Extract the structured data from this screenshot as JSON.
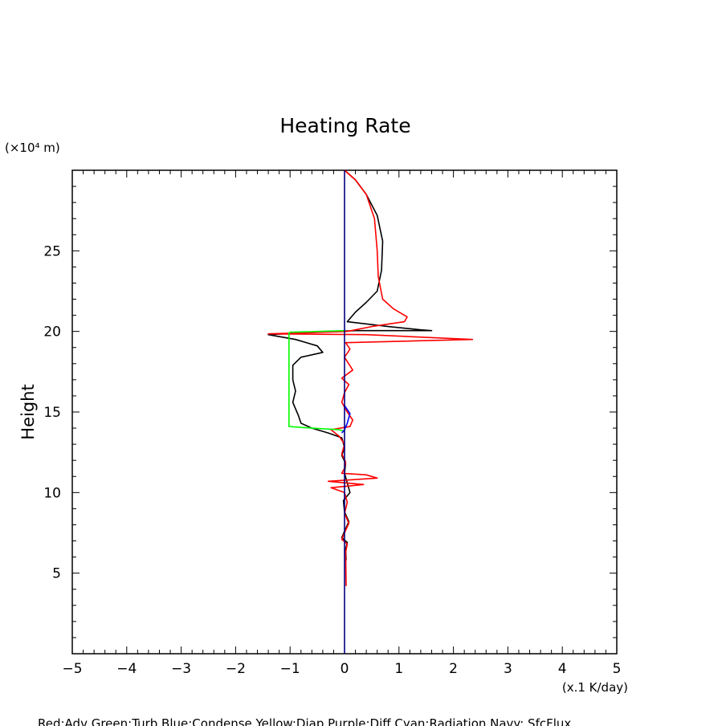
{
  "chart_data": {
    "type": "line",
    "title": "Heating Rate",
    "xlabel": "(x.1 K/day)",
    "ylabel": "Height",
    "y_unit_label": "(×10⁴ m)",
    "xlim": [
      -5,
      5
    ],
    "ylim": [
      0,
      30
    ],
    "x_ticks": [
      -5,
      -4,
      -3,
      -2,
      -1,
      0,
      1,
      2,
      3,
      4,
      5
    ],
    "x_tick_labels": [
      "−5",
      "−4",
      "−3",
      "−2",
      "−1",
      "0",
      "1",
      "2",
      "3",
      "4",
      "5"
    ],
    "y_ticks": [
      5,
      10,
      15,
      20,
      25
    ],
    "y_tick_labels": [
      "5",
      "10",
      "15",
      "20",
      "25"
    ],
    "grid": false,
    "footer": "Red:Adv Green:Turb Blue:Condense Yellow:Diap Purple:Diff Cyan:Radiation Navy: SfcFlux",
    "series": [
      {
        "color": "#000000",
        "points": [
          [
            0,
            30
          ],
          [
            0.2,
            29.4
          ],
          [
            0.4,
            28.5
          ],
          [
            0.6,
            27.2
          ],
          [
            0.7,
            25.6
          ],
          [
            0.68,
            23.8
          ],
          [
            0.6,
            22.5
          ],
          [
            0.4,
            21.8
          ],
          [
            0.2,
            21.2
          ],
          [
            0.05,
            20.6
          ],
          [
            0.8,
            20.3
          ],
          [
            1.4,
            20.1
          ],
          [
            1.6,
            20.05
          ],
          [
            0.2,
            20.05
          ],
          [
            -0.5,
            19.95
          ],
          [
            -1.4,
            19.8
          ],
          [
            -0.9,
            19.5
          ],
          [
            -0.5,
            19.1
          ],
          [
            -0.4,
            18.7
          ],
          [
            -0.8,
            18.4
          ],
          [
            -0.95,
            17.9
          ],
          [
            -0.95,
            17.0
          ],
          [
            -0.9,
            16.3
          ],
          [
            -0.95,
            15.6
          ],
          [
            -0.85,
            14.8
          ],
          [
            -0.8,
            14.3
          ],
          [
            -0.6,
            14.0
          ],
          [
            -0.3,
            13.7
          ],
          [
            -0.05,
            13.4
          ],
          [
            0,
            12.8
          ],
          [
            -0.05,
            12.3
          ],
          [
            0.02,
            11.8
          ],
          [
            0,
            11.2
          ],
          [
            0.05,
            10.6
          ],
          [
            0.1,
            10.0
          ],
          [
            -0.02,
            9.5
          ],
          [
            0.0,
            8.8
          ],
          [
            0.08,
            8.2
          ],
          [
            0.0,
            7.6
          ],
          [
            -0.05,
            7.2
          ],
          [
            0.05,
            6.9
          ],
          [
            0.02,
            6.5
          ],
          [
            0.03,
            5.8
          ]
        ]
      },
      {
        "color": "#ff0000",
        "points": [
          [
            0,
            30
          ],
          [
            0.2,
            29.4
          ],
          [
            0.4,
            28.5
          ],
          [
            0.55,
            27.0
          ],
          [
            0.6,
            25.0
          ],
          [
            0.62,
            23.4
          ],
          [
            0.7,
            22.0
          ],
          [
            0.9,
            21.4
          ],
          [
            1.15,
            20.9
          ],
          [
            1.1,
            20.6
          ],
          [
            0.5,
            20.3
          ],
          [
            0.05,
            20.0
          ],
          [
            -1.4,
            19.85
          ],
          [
            0.4,
            19.8
          ],
          [
            2.35,
            19.5
          ],
          [
            0.02,
            19.3
          ],
          [
            0.1,
            18.9
          ],
          [
            0.0,
            18.4
          ],
          [
            0.15,
            17.6
          ],
          [
            -0.05,
            17.1
          ],
          [
            0.08,
            16.7
          ],
          [
            0.0,
            16.2
          ],
          [
            -0.05,
            15.6
          ],
          [
            0.05,
            15.0
          ],
          [
            0.15,
            14.5
          ],
          [
            0.1,
            14.1
          ],
          [
            -0.25,
            13.9
          ],
          [
            -0.1,
            13.5
          ],
          [
            0.0,
            13.0
          ],
          [
            -0.05,
            12.4
          ],
          [
            0.02,
            11.9
          ],
          [
            0.0,
            11.5
          ],
          [
            -0.05,
            11.2
          ],
          [
            0.4,
            11.1
          ],
          [
            0.6,
            10.9
          ],
          [
            -0.3,
            10.7
          ],
          [
            0.35,
            10.5
          ],
          [
            -0.25,
            10.3
          ],
          [
            0.0,
            10.0
          ],
          [
            0.05,
            9.4
          ],
          [
            0.0,
            8.7
          ],
          [
            0.08,
            8.1
          ],
          [
            0.0,
            7.5
          ],
          [
            -0.05,
            7.1
          ],
          [
            0.05,
            6.8
          ],
          [
            0.02,
            6.3
          ],
          [
            0.03,
            4.2
          ]
        ]
      },
      {
        "color": "#00ff00",
        "points": [
          [
            0,
            20.05
          ],
          [
            -1.0,
            19.95
          ],
          [
            -1.02,
            19.9
          ],
          [
            -1.02,
            17.0
          ],
          [
            -1.02,
            14.1
          ],
          [
            -0.6,
            14.0
          ],
          [
            -0.1,
            13.9
          ],
          [
            0,
            13.8
          ]
        ]
      },
      {
        "color": "#0000ff",
        "points": [
          [
            0,
            15.4
          ],
          [
            0.1,
            14.9
          ],
          [
            0.05,
            14.3
          ],
          [
            0.0,
            13.9
          ],
          [
            -0.05,
            13.7
          ]
        ]
      },
      {
        "color": "#000080",
        "points": [
          [
            0,
            30
          ],
          [
            0,
            0
          ]
        ]
      }
    ]
  }
}
